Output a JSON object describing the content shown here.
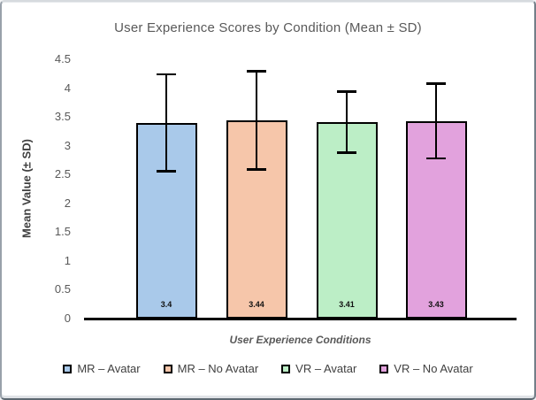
{
  "chart_data": {
    "type": "bar",
    "title": "User Experience Scores by Condition (Mean ± SD)",
    "xlabel": "User Experience Conditions",
    "ylabel": "Mean Value (± SD)",
    "ylim": [
      0,
      4.5
    ],
    "ytick_step": 0.5,
    "grid": false,
    "legend_position": "bottom",
    "categories": [
      "MR – Avatar",
      "MR – No Avatar",
      "VR – Avatar",
      "VR – No Avatar"
    ],
    "values": [
      3.4,
      3.44,
      3.41,
      3.43
    ],
    "value_labels": [
      "3.4",
      "3.44",
      "3.41",
      "3.43"
    ],
    "error_sd": [
      0.84,
      0.85,
      0.53,
      0.65
    ],
    "bar_colors": [
      "#A9C9EA",
      "#F6C6AA",
      "#BCEEC6",
      "#E2A2DD"
    ],
    "bar_border_color": "#000000",
    "error_bar_color": "#000000",
    "title_color": "#595959",
    "tick_label_color": "#595959"
  }
}
